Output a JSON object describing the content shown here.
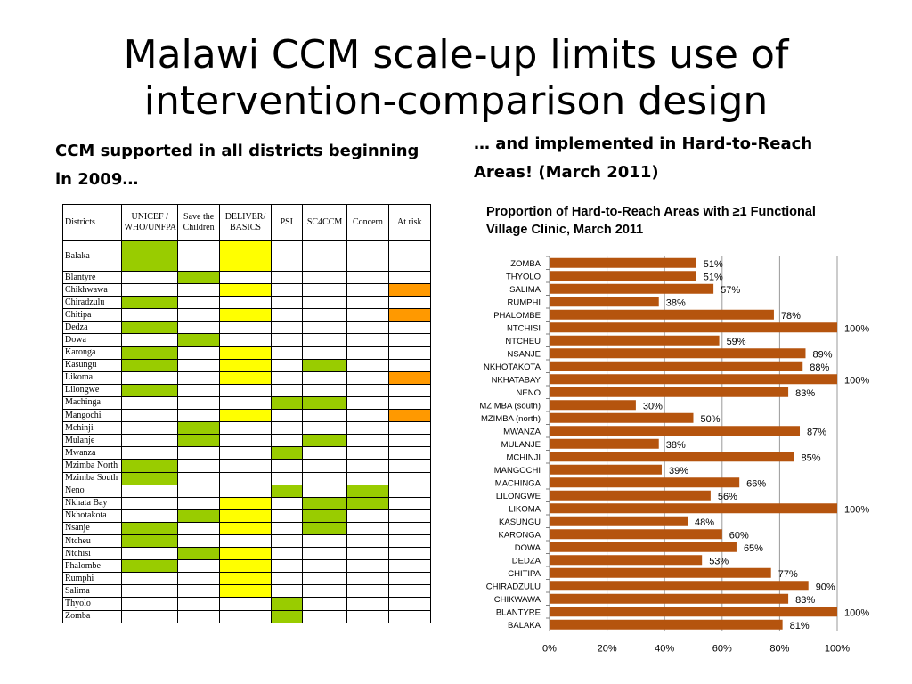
{
  "slide": {
    "title_line1": "Malawi CCM scale-up limits use of",
    "title_line2": "intervention-comparison design",
    "left_heading_line1": "CCM supported in all districts beginning",
    "left_heading_line2": "in 2009…",
    "right_heading_line1": "… and implemented in Hard-to-Reach",
    "right_heading_line2": "Areas! (March 2011)"
  },
  "colors": {
    "green": "#99cc00",
    "yellow": "#ffff00",
    "orange": "#ff9900",
    "bar": "#b5540e"
  },
  "table": {
    "headers": [
      "Districts",
      "UNICEF / WHO/UNFPA",
      "Save the Children",
      "DELIVER/ BASICS",
      "PSI",
      "SC4CCM",
      "Concern",
      "At risk"
    ],
    "rows": [
      {
        "district": "Balaka",
        "cells": [
          "g",
          "",
          "y",
          "",
          "",
          "",
          ""
        ]
      },
      {
        "district": "Blantyre",
        "cells": [
          "",
          "g",
          "",
          "",
          "",
          "",
          ""
        ]
      },
      {
        "district": "Chikhwawa",
        "cells": [
          "",
          "",
          "y",
          "",
          "",
          "",
          "o"
        ]
      },
      {
        "district": "Chiradzulu",
        "cells": [
          "g",
          "",
          "",
          "",
          "",
          "",
          ""
        ]
      },
      {
        "district": "Chitipa",
        "cells": [
          "",
          "",
          "y",
          "",
          "",
          "",
          "o"
        ]
      },
      {
        "district": "Dedza",
        "cells": [
          "g",
          "",
          "",
          "",
          "",
          "",
          ""
        ]
      },
      {
        "district": "Dowa",
        "cells": [
          "",
          "g",
          "",
          "",
          "",
          "",
          ""
        ]
      },
      {
        "district": "Karonga",
        "cells": [
          "g",
          "",
          "y",
          "",
          "",
          "",
          ""
        ]
      },
      {
        "district": "Kasungu",
        "cells": [
          "g",
          "",
          "y",
          "",
          "g",
          "",
          ""
        ]
      },
      {
        "district": "Likoma",
        "cells": [
          "",
          "",
          "y",
          "",
          "",
          "",
          "o"
        ]
      },
      {
        "district": "Lilongwe",
        "cells": [
          "g",
          "",
          "",
          "",
          "",
          "",
          ""
        ]
      },
      {
        "district": "Machinga",
        "cells": [
          "",
          "",
          "",
          "g",
          "g",
          "",
          ""
        ]
      },
      {
        "district": "Mangochi",
        "cells": [
          "",
          "",
          "y",
          "",
          "",
          "",
          "o"
        ]
      },
      {
        "district": "Mchinji",
        "cells": [
          "",
          "g",
          "",
          "",
          "",
          "",
          ""
        ]
      },
      {
        "district": "Mulanje",
        "cells": [
          "",
          "g",
          "",
          "",
          "g",
          "",
          ""
        ]
      },
      {
        "district": "Mwanza",
        "cells": [
          "",
          "",
          "",
          "g",
          "",
          "",
          ""
        ]
      },
      {
        "district": "Mzimba North",
        "cells": [
          "g",
          "",
          "",
          "",
          "",
          "",
          ""
        ]
      },
      {
        "district": "Mzimba South",
        "cells": [
          "g",
          "",
          "",
          "",
          "",
          "",
          ""
        ]
      },
      {
        "district": "Neno",
        "cells": [
          "",
          "",
          "",
          "g",
          "",
          "g",
          ""
        ]
      },
      {
        "district": "Nkhata Bay",
        "cells": [
          "",
          "",
          "y",
          "",
          "g",
          "g",
          ""
        ]
      },
      {
        "district": "Nkhotakota",
        "cells": [
          "",
          "g",
          "y",
          "",
          "g",
          "",
          ""
        ]
      },
      {
        "district": "Nsanje",
        "cells": [
          "g",
          "",
          "y",
          "",
          "g",
          "",
          ""
        ]
      },
      {
        "district": "Ntcheu",
        "cells": [
          "g",
          "",
          "",
          "",
          "",
          "",
          ""
        ]
      },
      {
        "district": "Ntchisi",
        "cells": [
          "",
          "g",
          "y",
          "",
          "",
          "",
          ""
        ]
      },
      {
        "district": "Phalombe",
        "cells": [
          "g",
          "",
          "y",
          "",
          "",
          "",
          ""
        ]
      },
      {
        "district": "Rumphi",
        "cells": [
          "",
          "",
          "y",
          "",
          "",
          "",
          ""
        ]
      },
      {
        "district": "Salima",
        "cells": [
          "",
          "",
          "y",
          "",
          "",
          "",
          ""
        ]
      },
      {
        "district": "Thyolo",
        "cells": [
          "",
          "",
          "",
          "g",
          "",
          "",
          ""
        ]
      },
      {
        "district": "Zomba",
        "cells": [
          "",
          "",
          "",
          "g",
          "",
          "",
          ""
        ]
      }
    ]
  },
  "chart_data": {
    "type": "bar",
    "orientation": "horizontal",
    "title": "Proportion of Hard-to-Reach Areas with ≥1 Functional Village Clinic, March 2011",
    "categories": [
      "ZOMBA",
      "THYOLO",
      "SALIMA",
      "RUMPHI",
      "PHALOMBE",
      "NTCHISI",
      "NTCHEU",
      "NSANJE",
      "NKHOTAKOTA",
      "NKHATABAY",
      "NENO",
      "MZIMBA (south)",
      "MZIMBA (north)",
      "MWANZA",
      "MULANJE",
      "MCHINJI",
      "MANGOCHI",
      "MACHINGA",
      "LILONGWE",
      "LIKOMA",
      "KASUNGU",
      "KARONGA",
      "DOWA",
      "DEDZA",
      "CHITIPA",
      "CHIRADZULU",
      "CHIKWAWA",
      "BLANTYRE",
      "BALAKA"
    ],
    "values": [
      51,
      51,
      57,
      38,
      78,
      100,
      59,
      89,
      88,
      100,
      83,
      30,
      50,
      87,
      38,
      85,
      39,
      66,
      56,
      100,
      48,
      60,
      65,
      53,
      77,
      90,
      83,
      100,
      81
    ],
    "data_labels": [
      "51%",
      "51%",
      "57%",
      "38%",
      "78%",
      "100%",
      "59%",
      "89%",
      "88%",
      "100%",
      "83%",
      "30%",
      "50%",
      "87%",
      "38%",
      "85%",
      "39%",
      "66%",
      "56%",
      "100%",
      "48%",
      "60%",
      "65%",
      "53%",
      "77%",
      "90%",
      "83%",
      "100%",
      "81%"
    ],
    "x_ticks": [
      "0%",
      "20%",
      "40%",
      "60%",
      "80%",
      "100%"
    ],
    "xlim": [
      0,
      100
    ],
    "grid": true,
    "legend": "none"
  }
}
